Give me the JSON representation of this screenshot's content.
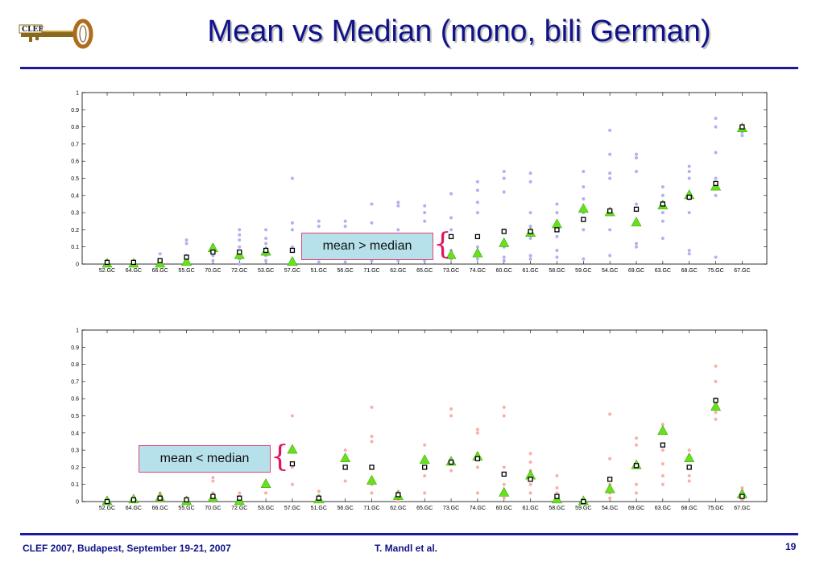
{
  "slide": {
    "title": "Mean vs Median (mono, bili German)",
    "logo_text": "CLEF",
    "footer_left": "CLEF 2007, Budapest, September 19-21, 2007",
    "footer_center": "T. Mandl et al.",
    "page_number": "19",
    "accent_color": "#1a1aa0",
    "callout_top": "mean > median",
    "callout_bottom": "mean < median"
  },
  "chart_data": [
    {
      "type": "scatter",
      "title": "",
      "ylim": [
        0,
        1
      ],
      "yticks": [
        "0",
        "0.1",
        "0.2",
        "0.3",
        "0.4",
        "0.5",
        "0.6",
        "0.7",
        "0.8",
        "0.9",
        "1"
      ],
      "categories": [
        "52.GC",
        "64.GC",
        "66.GC",
        "55.GC",
        "70.GC",
        "72.GC",
        "53.GC",
        "57.GC",
        "51.GC",
        "56.GC",
        "71.GC",
        "62.GC",
        "65.GC",
        "73.GC",
        "74.GC",
        "60.GC",
        "61.GC",
        "58.GC",
        "59.GC",
        "54.GC",
        "69.GC",
        "63.GC",
        "68.GC",
        "75.GC",
        "67.GC"
      ],
      "mean": [
        0.01,
        0.01,
        0.02,
        0.04,
        0.07,
        0.07,
        0.08,
        0.08,
        null,
        null,
        null,
        null,
        null,
        0.16,
        0.16,
        0.19,
        0.19,
        0.2,
        0.26,
        0.31,
        0.32,
        0.35,
        0.39,
        0.47,
        0.8
      ],
      "median": [
        0.0,
        0.0,
        0.0,
        0.01,
        0.09,
        0.05,
        0.07,
        0.01,
        null,
        null,
        null,
        null,
        null,
        0.05,
        0.06,
        0.12,
        0.18,
        0.23,
        0.32,
        0.3,
        0.24,
        0.34,
        0.4,
        0.45,
        0.79
      ],
      "scatter_color": "#b3b0ee",
      "scatter": [
        [
          0.0,
          0.01
        ],
        [
          0.0,
          0.01
        ],
        [
          0.0,
          0.01,
          0.02,
          0.06
        ],
        [
          0.01,
          0.02,
          0.05,
          0.12,
          0.14
        ],
        [
          0.02,
          0.05,
          0.08,
          0.1,
          0.11
        ],
        [
          0.0,
          0.03,
          0.06,
          0.1,
          0.14,
          0.17,
          0.2
        ],
        [
          0.02,
          0.05,
          0.08,
          0.12,
          0.15,
          0.2
        ],
        [
          0.0,
          0.03,
          0.1,
          0.2,
          0.24,
          0.5
        ],
        [
          0.01,
          0.03,
          0.05,
          0.1,
          0.22,
          0.25
        ],
        [
          0.01,
          0.03,
          0.08,
          0.12,
          0.22,
          0.25
        ],
        [
          0.02,
          0.06,
          0.1,
          0.24,
          0.35
        ],
        [
          0.02,
          0.05,
          0.1,
          0.2,
          0.34,
          0.36
        ],
        [
          0.02,
          0.06,
          0.15,
          0.25,
          0.3,
          0.34
        ],
        [
          0.03,
          0.08,
          0.2,
          0.27,
          0.41
        ],
        [
          0.03,
          0.1,
          0.3,
          0.36,
          0.43,
          0.48
        ],
        [
          0.02,
          0.04,
          0.1,
          0.2,
          0.42,
          0.5,
          0.54
        ],
        [
          0.03,
          0.05,
          0.15,
          0.22,
          0.3,
          0.48,
          0.53
        ],
        [
          0.04,
          0.08,
          0.16,
          0.2,
          0.3,
          0.35
        ],
        [
          0.03,
          0.2,
          0.3,
          0.38,
          0.45,
          0.54
        ],
        [
          0.05,
          0.2,
          0.3,
          0.5,
          0.53,
          0.64,
          0.78
        ],
        [
          0.1,
          0.12,
          0.25,
          0.35,
          0.54,
          0.62,
          0.64
        ],
        [
          0.15,
          0.25,
          0.3,
          0.36,
          0.4,
          0.45
        ],
        [
          0.06,
          0.08,
          0.3,
          0.38,
          0.5,
          0.54,
          0.57
        ],
        [
          0.04,
          0.4,
          0.5,
          0.65,
          0.8,
          0.85
        ],
        [
          0.75,
          0.77,
          0.79,
          0.8
        ]
      ]
    },
    {
      "type": "scatter",
      "title": "",
      "ylim": [
        0,
        1
      ],
      "yticks": [
        "0",
        "0.1",
        "0.2",
        "0.3",
        "0.4",
        "0.5",
        "0.6",
        "0.7",
        "0.8",
        "0.9",
        "1"
      ],
      "categories": [
        "52.GC",
        "64.GC",
        "66.GC",
        "55.GC",
        "70.GC",
        "72.GC",
        "53.GC",
        "57.GC",
        "51.GC",
        "56.GC",
        "71.GC",
        "62.GC",
        "65.GC",
        "73.GC",
        "74.GC",
        "60.GC",
        "61.GC",
        "58.GC",
        "59.GC",
        "54.GC",
        "69.GC",
        "63.GC",
        "68.GC",
        "75.GC",
        "67.GC"
      ],
      "mean": [
        0.0,
        0.01,
        0.02,
        0.01,
        0.03,
        0.02,
        null,
        0.22,
        0.02,
        0.2,
        0.2,
        0.04,
        0.2,
        0.23,
        0.25,
        0.16,
        0.13,
        0.03,
        0.0,
        0.13,
        0.21,
        0.33,
        0.2,
        0.59,
        0.03
      ],
      "median": [
        0.0,
        0.01,
        0.02,
        0.0,
        0.02,
        0.0,
        0.1,
        0.3,
        0.01,
        0.25,
        0.12,
        0.03,
        0.24,
        0.23,
        0.26,
        0.05,
        0.15,
        0.01,
        0.0,
        0.07,
        0.21,
        0.41,
        0.25,
        0.55,
        0.04
      ],
      "scatter_color": "#f8b0a8",
      "scatter": [
        [
          0.0,
          0.01
        ],
        [
          0.0,
          0.01
        ],
        [
          0.0,
          0.02,
          0.05
        ],
        [
          0.0,
          0.01,
          0.02
        ],
        [
          0.0,
          0.05,
          0.12,
          0.14
        ],
        [
          0.0,
          0.03,
          0.05
        ],
        [
          0.05,
          0.1
        ],
        [
          0.1,
          0.2,
          0.3,
          0.5
        ],
        [
          0.0,
          0.03,
          0.06
        ],
        [
          0.12,
          0.2,
          0.25,
          0.3
        ],
        [
          0.05,
          0.1,
          0.35,
          0.38,
          0.55
        ],
        [
          0.0,
          0.02,
          0.04,
          0.06
        ],
        [
          0.05,
          0.15,
          0.25,
          0.33
        ],
        [
          0.18,
          0.22,
          0.5,
          0.54
        ],
        [
          0.05,
          0.2,
          0.28,
          0.4,
          0.42
        ],
        [
          0.02,
          0.05,
          0.1,
          0.2,
          0.5,
          0.55
        ],
        [
          0.05,
          0.1,
          0.18,
          0.23,
          0.28
        ],
        [
          0.0,
          0.02,
          0.05,
          0.08,
          0.15
        ],
        [
          0.0,
          0.01
        ],
        [
          0.02,
          0.05,
          0.1,
          0.25,
          0.51
        ],
        [
          0.05,
          0.1,
          0.2,
          0.33,
          0.37
        ],
        [
          0.1,
          0.15,
          0.22,
          0.3,
          0.45
        ],
        [
          0.12,
          0.15,
          0.2,
          0.27,
          0.3
        ],
        [
          0.48,
          0.52,
          0.6,
          0.7,
          0.79
        ],
        [
          0.01,
          0.03,
          0.06,
          0.08
        ]
      ]
    }
  ]
}
